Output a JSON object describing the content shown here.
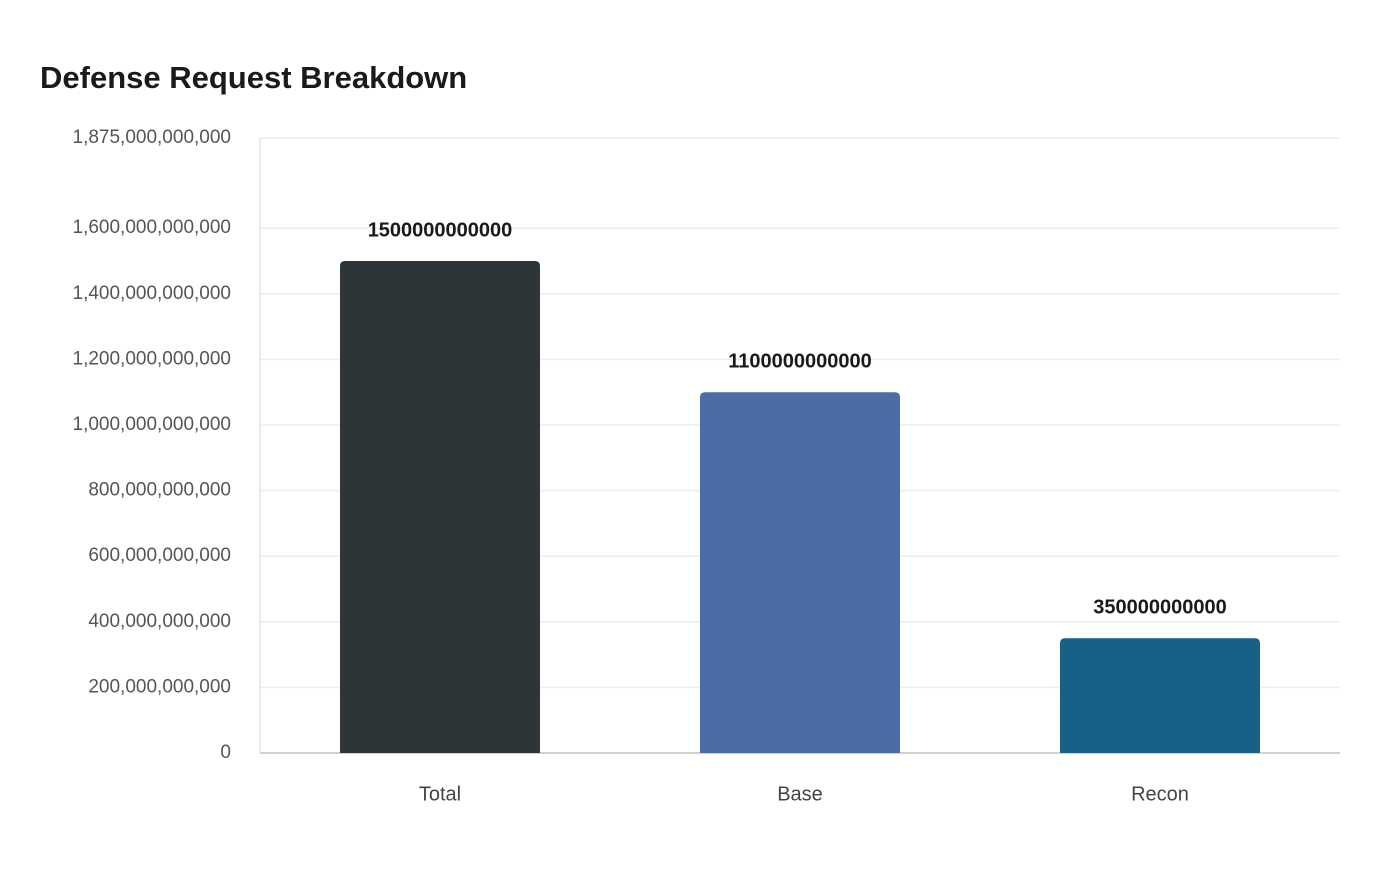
{
  "chart_data": {
    "type": "bar",
    "title": "Defense Request Breakdown",
    "categories": [
      "Total",
      "Base",
      "Recon"
    ],
    "values": [
      1500000000000,
      1100000000000,
      350000000000
    ],
    "colors": [
      "#2e3538",
      "#4a6da3",
      "#176088"
    ],
    "ylim": [
      0,
      1875000000000
    ],
    "yticks": [
      0,
      {
        "value": 200000000000,
        "label": "200,000,000,000"
      },
      {
        "value": 400000000000,
        "label": "400,000,000,000"
      },
      {
        "value": 600000000000,
        "label": "600,000,000,000"
      },
      {
        "value": 800000000000,
        "label": "800,000,000,000"
      },
      {
        "value": 1000000000000,
        "label": "1,000,000,000,000"
      },
      {
        "value": 1200000000000,
        "label": "1,200,000,000,000"
      },
      {
        "value": 1400000000000,
        "label": "1,400,000,000,000"
      },
      {
        "value": 1600000000000,
        "label": "1,600,000,000,000"
      },
      {
        "value": 1875000000000,
        "label": "1,875,000,000,000"
      }
    ],
    "grid": true
  }
}
